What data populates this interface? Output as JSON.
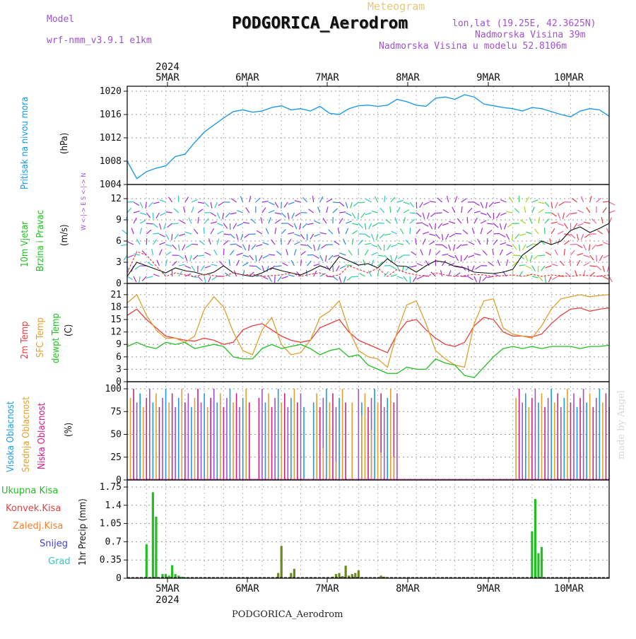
{
  "header": {
    "model_label": "Model",
    "model_name": "wrf-nmm_v3.9.1 e1km",
    "meteogram": "Meteogram",
    "title": "PODGORICA_Aerodrom",
    "lonlat": "lon,lat (19.25E, 42.3625N)",
    "elevation": "Nadmorska Visina 39m",
    "model_elevation": "Nadmorska Visina u modelu 52.8106m",
    "footer": "PODGORICA_Aerodrom",
    "credit": "made by Angel"
  },
  "time_axis": {
    "year": "2024",
    "labels": [
      "5MAR",
      "6MAR",
      "7MAR",
      "8MAR",
      "9MAR",
      "10MAR"
    ],
    "hours_total": 150
  },
  "panels": {
    "pressure": {
      "title": "Pritisak na nivou mora",
      "unit": "(hPa)"
    },
    "wind": {
      "title1": "10m Vjetar",
      "title2": "Brzina i Pravac",
      "unit": "(m/s)",
      "compass": "W <-|-> E  S <-|-> N"
    },
    "temperature": {
      "t2m": "2m Temp",
      "sfc": "SFC Temp",
      "dew": "dewpt Temp",
      "unit": "(C)"
    },
    "clouds": {
      "high": "Visoka Oblacnost",
      "mid": "Srednja Oblacnost",
      "low": "Niska Oblacnost",
      "unit": "(%)"
    },
    "precip": {
      "unit": "1hr Precip (mm)",
      "legend": [
        "Ukupna Kisa",
        "Konvek.Kisa",
        "Zaledj.Kisa",
        "Snijeg",
        "Grad"
      ]
    }
  },
  "colors": {
    "pressure": "#1e9be8",
    "t2m": "#e84040",
    "sfc": "#e0a030",
    "dew": "#20c020",
    "total": "#20c020",
    "conv": "#e84040",
    "frz": "#f08030",
    "snow": "#4040e0",
    "grad": "#30c8c8",
    "purple": "#a050d8",
    "cloud_high": "#1e9be8",
    "cloud_mid": "#e0a030",
    "cloud_low": "#d02080"
  },
  "chart_data": [
    {
      "type": "line",
      "name": "pressure",
      "ylabel": "Pritisak na nivou mora (hPa)",
      "ylim": [
        1004,
        1020
      ],
      "yticks": [
        1004,
        1008,
        1012,
        1016,
        1020
      ],
      "x": [
        0,
        3,
        6,
        9,
        12,
        15,
        18,
        21,
        24,
        27,
        30,
        33,
        36,
        39,
        42,
        45,
        48,
        51,
        54,
        57,
        60,
        63,
        66,
        69,
        72,
        75,
        78,
        81,
        84,
        87,
        90,
        93,
        96,
        99,
        102,
        105,
        108,
        111,
        114,
        117,
        120,
        123,
        126,
        129,
        132,
        135,
        138,
        141,
        144,
        147,
        150
      ],
      "values": [
        1008.0,
        1005.0,
        1006.2,
        1006.8,
        1007.2,
        1008.8,
        1009.2,
        1011.2,
        1013.0,
        1014.2,
        1015.4,
        1016.5,
        1016.8,
        1016.4,
        1016.6,
        1017.2,
        1017.5,
        1016.8,
        1017.0,
        1016.6,
        1017.4,
        1016.2,
        1016.0,
        1017.0,
        1017.5,
        1017.6,
        1017.4,
        1017.6,
        1018.6,
        1018.2,
        1017.6,
        1017.4,
        1018.8,
        1019.0,
        1018.6,
        1019.4,
        1019.0,
        1017.8,
        1017.5,
        1017.2,
        1017.0,
        1016.6,
        1017.2,
        1017.0,
        1016.5,
        1016.0,
        1015.6,
        1016.6,
        1017.0,
        1016.8,
        1015.7
      ]
    },
    {
      "type": "line",
      "name": "wind",
      "ylabel": "10m Vjetar Brzina i Pravac (m/s)",
      "ylim": [
        0,
        13
      ],
      "yticks": [
        0,
        3,
        6,
        9,
        12
      ],
      "x": [
        0,
        3,
        6,
        9,
        12,
        15,
        18,
        21,
        24,
        27,
        30,
        33,
        36,
        39,
        42,
        45,
        48,
        51,
        54,
        57,
        60,
        63,
        66,
        69,
        72,
        75,
        78,
        81,
        84,
        87,
        90,
        93,
        96,
        99,
        102,
        105,
        108,
        111,
        114,
        117,
        120,
        123,
        126,
        129,
        132,
        135,
        138,
        141,
        144,
        147,
        150
      ],
      "series": [
        {
          "values": [
            1.0,
            3.0,
            2.5,
            2.0,
            1.5,
            2.2,
            1.8,
            1.6,
            1.2,
            1.6,
            2.5,
            1.5,
            1.2,
            1.0,
            1.5,
            2.2,
            1.8,
            1.5,
            1.2,
            1.8,
            2.5,
            2.0,
            3.8,
            3.2,
            2.6,
            2.8,
            2.2,
            3.5,
            2.5,
            2.4,
            1.6,
            2.5,
            3.2,
            3.0,
            2.4,
            2.2,
            1.6,
            1.5,
            1.4,
            1.6,
            2.0,
            4.0,
            5.0,
            6.0,
            5.5,
            6.0,
            7.5,
            8.0,
            7.2,
            7.8,
            8.5
          ]
        },
        {
          "values": [
            1.5,
            4.5,
            4.0,
            2.5,
            1.0,
            1.5,
            1.2,
            1.0,
            1.3,
            1.1,
            1.0,
            1.5,
            1.2,
            1.3,
            1.0,
            1.1,
            1.2,
            1.5,
            1.0,
            1.3,
            1.5,
            1.0,
            1.2,
            2.5,
            2.0,
            1.5,
            2.2,
            1.0,
            2.0,
            1.5,
            1.2,
            1.0,
            1.5,
            1.2,
            1.0,
            1.1,
            1.3,
            1.2,
            1.0,
            1.1,
            1.2,
            1.0,
            1.3,
            1.0,
            1.2,
            1.1,
            1.0,
            1.2,
            1.1,
            1.0,
            1.2
          ]
        }
      ]
    },
    {
      "type": "line",
      "name": "temperature",
      "ylabel": "(C)",
      "ylim": [
        0,
        22
      ],
      "yticks": [
        0,
        3,
        6,
        9,
        12,
        15,
        18,
        21
      ],
      "x": [
        0,
        3,
        6,
        9,
        12,
        15,
        18,
        21,
        24,
        27,
        30,
        33,
        36,
        39,
        42,
        45,
        48,
        51,
        54,
        57,
        60,
        63,
        66,
        69,
        72,
        75,
        78,
        81,
        84,
        87,
        90,
        93,
        96,
        99,
        102,
        105,
        108,
        111,
        114,
        117,
        120,
        123,
        126,
        129,
        132,
        135,
        138,
        141,
        144,
        147,
        150
      ],
      "series": [
        {
          "name": "2m Temp",
          "values": [
            16.0,
            17.5,
            15.0,
            13.0,
            11.0,
            10.5,
            10.0,
            9.8,
            10.5,
            10.0,
            9.0,
            9.5,
            12.5,
            13.5,
            14.0,
            12.5,
            11.0,
            10.0,
            9.5,
            10.0,
            13.0,
            14.0,
            15.0,
            12.0,
            10.0,
            9.0,
            8.0,
            7.0,
            11.5,
            14.5,
            15.0,
            12.5,
            10.5,
            9.0,
            8.5,
            9.5,
            13.5,
            15.5,
            15.0,
            12.0,
            11.0,
            11.0,
            10.8,
            11.5,
            14.0,
            16.0,
            17.5,
            17.8,
            17.0,
            17.5,
            17.8
          ]
        },
        {
          "name": "SFC Temp",
          "values": [
            19.0,
            21.0,
            16.0,
            12.5,
            10.5,
            10.5,
            9.5,
            11.0,
            17.5,
            20.5,
            18.0,
            12.0,
            7.5,
            6.5,
            12.5,
            15.5,
            9.0,
            6.5,
            7.0,
            10.0,
            15.5,
            17.0,
            19.5,
            12.5,
            7.5,
            6.0,
            5.5,
            3.5,
            12.0,
            18.5,
            19.5,
            14.0,
            7.5,
            5.5,
            4.0,
            3.5,
            14.0,
            19.5,
            20.0,
            13.0,
            11.5,
            11.0,
            10.5,
            13.5,
            17.5,
            20.0,
            20.5,
            21.0,
            20.5,
            20.8,
            21.0
          ]
        },
        {
          "name": "dewpt Temp",
          "values": [
            8.5,
            9.5,
            8.5,
            8.0,
            9.5,
            9.0,
            9.5,
            8.0,
            8.5,
            9.0,
            8.5,
            6.0,
            5.5,
            5.5,
            8.0,
            9.0,
            8.0,
            8.5,
            9.0,
            8.0,
            6.5,
            7.5,
            8.0,
            6.0,
            6.5,
            4.0,
            3.0,
            2.0,
            2.0,
            3.5,
            3.0,
            3.0,
            5.5,
            4.5,
            4.0,
            1.5,
            1.0,
            3.5,
            6.0,
            8.0,
            8.5,
            8.0,
            8.5,
            8.0,
            8.5,
            8.5,
            8.5,
            8.0,
            8.5,
            8.5,
            8.8
          ]
        }
      ]
    },
    {
      "type": "bar",
      "name": "clouds",
      "ylabel": "(%)",
      "ylim": [
        0,
        100
      ],
      "yticks": [
        0,
        25,
        50,
        75,
        100
      ],
      "segments": [
        {
          "name": "Visoka Oblacnost",
          "from": 1,
          "to": 38,
          "value": 100
        },
        {
          "name": "Visoka Oblacnost",
          "from": 41,
          "to": 55,
          "value": 100
        },
        {
          "name": "Srednja Oblacnost",
          "from": 58,
          "to": 68,
          "value": 100
        },
        {
          "name": "Srednja Oblacnost",
          "from": 72,
          "to": 84,
          "value": 100
        },
        {
          "name": "Visoka Oblacnost",
          "from": 121,
          "to": 140,
          "value": 100
        },
        {
          "name": "Visoka Oblacnost",
          "from": 141,
          "to": 150,
          "value": 100
        }
      ]
    },
    {
      "type": "bar",
      "name": "precip",
      "ylabel": "1hr Precip (mm)",
      "ylim": [
        0,
        1.75
      ],
      "yticks": [
        0,
        0.35,
        0.7,
        1.05,
        1.4,
        1.75
      ],
      "series": [
        {
          "name": "Ukupna Kisa",
          "x": [
            6,
            8,
            9,
            11,
            12,
            13,
            14,
            15,
            16,
            17,
            18,
            47,
            48,
            51,
            52,
            64,
            65,
            66,
            67,
            68,
            69,
            70,
            71,
            72,
            79,
            80,
            81,
            82,
            83,
            84,
            85,
            86,
            87,
            126,
            127,
            128,
            129,
            130,
            131,
            132,
            133,
            134
          ],
          "values": [
            0.65,
            1.65,
            1.18,
            0.08,
            0.08,
            0.05,
            0.25,
            0.08,
            0.05,
            0.03,
            0.02,
            0.1,
            0.62,
            0.1,
            0.18,
            0.03,
            0.08,
            0.1,
            0.04,
            0.24,
            0.05,
            0.08,
            0.1,
            0.15,
            0.05,
            0.03,
            0.0,
            0.0,
            0.0,
            0.0,
            0.0,
            0.0,
            0.0,
            0.9,
            1.52,
            0.48,
            0.6,
            0.0,
            0.0,
            0.0,
            0.0,
            0.0
          ]
        }
      ]
    }
  ]
}
